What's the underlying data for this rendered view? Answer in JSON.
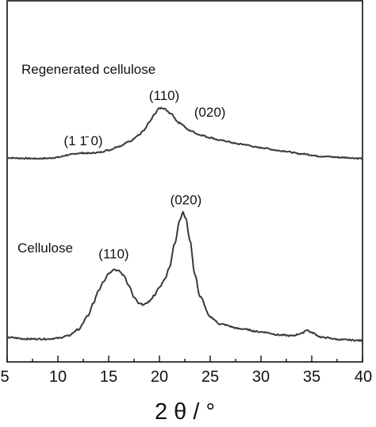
{
  "chart_data": {
    "type": "line",
    "xlabel": "2 θ / °",
    "xlim": [
      5,
      40
    ],
    "x_ticks": [
      "5",
      "10",
      "15",
      "20",
      "25",
      "30",
      "35",
      "40"
    ],
    "ylabel": "",
    "y_ticks_shown": false,
    "grid": false,
    "legend": "none",
    "series": [
      {
        "name": "Regenerated cellulose",
        "x": [
          5.0,
          6.0,
          7.0,
          8.0,
          9.0,
          10.0,
          11.0,
          12.0,
          12.5,
          13.0,
          14.0,
          15.0,
          16.0,
          17.0,
          18.0,
          18.5,
          19.0,
          19.5,
          20.0,
          20.5,
          21.0,
          22.0,
          23.0,
          24.0,
          25.0,
          26.0,
          28.0,
          30.0,
          32.0,
          34.0,
          36.0,
          38.0,
          40.0
        ],
        "y": [
          0.3,
          0.27,
          0.25,
          0.24,
          0.26,
          0.33,
          0.5,
          0.62,
          0.64,
          0.62,
          0.68,
          0.85,
          1.12,
          1.45,
          1.95,
          2.3,
          2.85,
          3.4,
          3.88,
          3.82,
          3.52,
          2.8,
          2.25,
          1.95,
          1.75,
          1.55,
          1.28,
          1.02,
          0.8,
          0.58,
          0.4,
          0.32,
          0.25
        ]
      },
      {
        "name": "Cellulose",
        "x": [
          5.0,
          7.0,
          9.0,
          10.0,
          11.0,
          12.0,
          13.0,
          13.5,
          14.0,
          14.5,
          15.0,
          15.5,
          16.0,
          16.5,
          17.0,
          17.5,
          18.0,
          18.5,
          19.0,
          19.5,
          20.0,
          20.5,
          21.0,
          21.5,
          22.0,
          22.3,
          22.6,
          23.0,
          23.5,
          24.0,
          25.0,
          26.0,
          28.0,
          30.0,
          32.0,
          33.0,
          34.0,
          34.5,
          35.0,
          36.0,
          38.0,
          40.0
        ],
        "y": [
          0.3,
          0.2,
          0.2,
          0.25,
          0.4,
          0.8,
          1.7,
          2.5,
          3.3,
          3.9,
          4.4,
          4.65,
          4.55,
          4.25,
          3.6,
          2.85,
          2.45,
          2.4,
          2.6,
          3.0,
          3.5,
          4.0,
          4.8,
          6.3,
          7.8,
          8.3,
          7.9,
          6.5,
          4.3,
          2.9,
          1.6,
          1.15,
          0.85,
          0.65,
          0.45,
          0.4,
          0.55,
          0.78,
          0.6,
          0.3,
          0.15,
          0.1
        ]
      }
    ],
    "annotations": [
      {
        "series": "Regenerated cellulose",
        "text": "(1 1̄ 0)",
        "x": 12.5
      },
      {
        "series": "Regenerated cellulose",
        "text": "(110)",
        "x": 20.0
      },
      {
        "series": "Regenerated cellulose",
        "text": "(020)",
        "x": 22.0
      },
      {
        "series": "Cellulose",
        "text": "(110)",
        "x": 15.5
      },
      {
        "series": "Cellulose",
        "text": "(020)",
        "x": 22.3
      }
    ],
    "colors": {
      "line": "#3a3a3a",
      "axis": "#111111",
      "background": "#ffffff"
    }
  }
}
